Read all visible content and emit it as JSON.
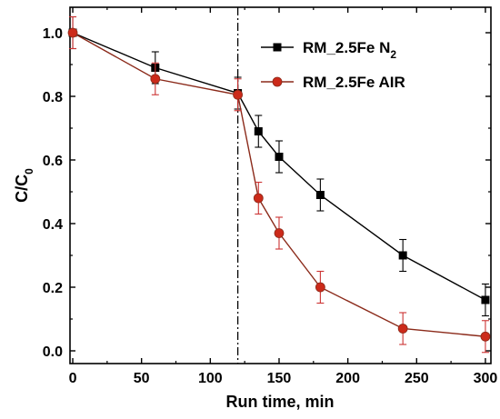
{
  "chart_data": {
    "type": "line",
    "xlabel": "Run time, min",
    "ylabel": "C/C",
    "ylabel_subscript": "0",
    "xlim": [
      -2,
      304
    ],
    "ylim": [
      -0.04,
      1.08
    ],
    "xticks": [
      0,
      50,
      100,
      150,
      200,
      250,
      300
    ],
    "yticks": [
      0.0,
      0.2,
      0.4,
      0.6,
      0.8,
      1.0
    ],
    "ytick_labels": [
      "0.0",
      "0.2",
      "0.4",
      "0.6",
      "0.8",
      "1.0"
    ],
    "grid": false,
    "legend_position": "top-right",
    "vertical_line": {
      "x": 120,
      "style": "dash-dot"
    },
    "series": [
      {
        "name": "RM_2.5Fe N",
        "name_subscript": "2",
        "color": "#000000",
        "error_color": "#000000",
        "marker": "square",
        "x": [
          0,
          60,
          120,
          135,
          150,
          180,
          240,
          300
        ],
        "y": [
          1.0,
          0.89,
          0.81,
          0.69,
          0.61,
          0.49,
          0.3,
          0.16
        ],
        "err": [
          0.05,
          0.05,
          0.05,
          0.05,
          0.05,
          0.05,
          0.05,
          0.05
        ]
      },
      {
        "name": "RM_2.5Fe AIR",
        "color": "#8b2a1a",
        "error_color": "#cc3333",
        "marker": "circle",
        "marker_color": "#cc2a1a",
        "x": [
          0,
          60,
          120,
          135,
          150,
          180,
          240,
          300
        ],
        "y": [
          1.0,
          0.855,
          0.805,
          0.48,
          0.37,
          0.2,
          0.07,
          0.045
        ],
        "err": [
          0.05,
          0.05,
          0.05,
          0.05,
          0.05,
          0.05,
          0.05,
          0.05
        ]
      }
    ]
  }
}
